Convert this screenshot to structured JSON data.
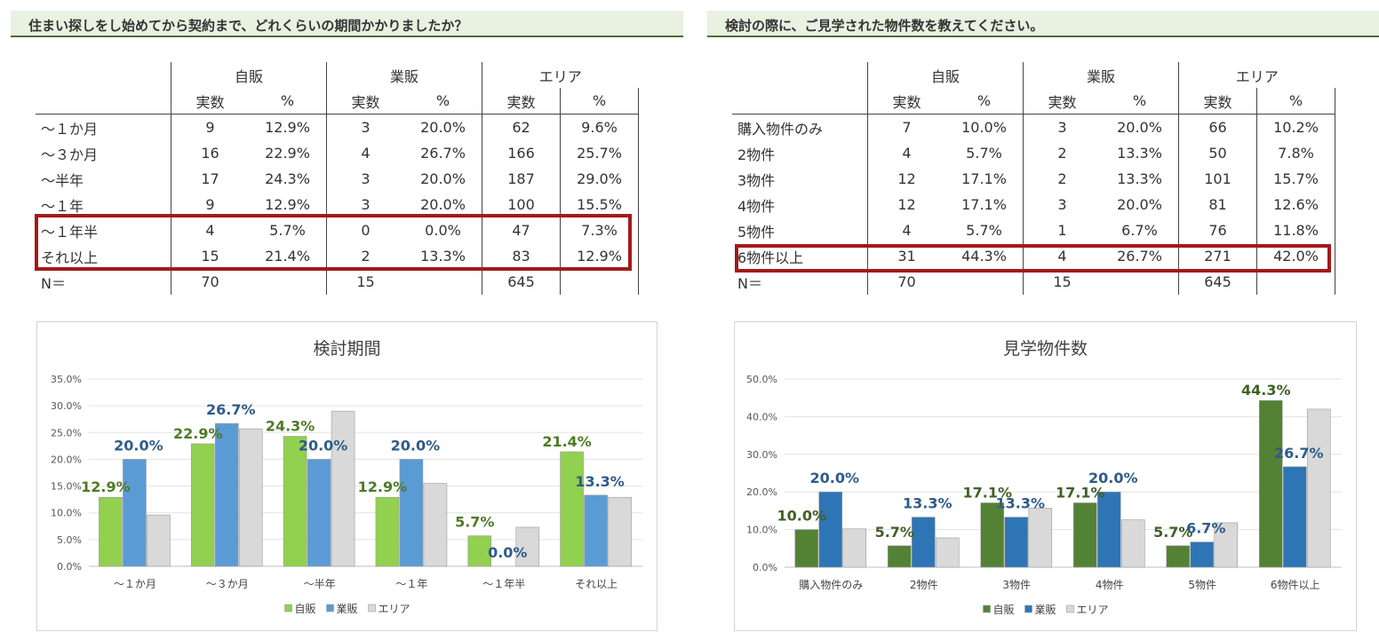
{
  "left": {
    "question": "住まい探しをし始めてから契約まで、どれくらいの期間かかりましたか？",
    "table": {
      "groups": [
        "自販",
        "業販",
        "エリア"
      ],
      "subheaders": [
        "実数",
        "%",
        "実数",
        "%",
        "実数",
        "%"
      ],
      "rows": [
        {
          "label": "～１か月",
          "cells": [
            "9",
            "12.9%",
            "3",
            "20.0%",
            "62",
            "9.6%"
          ]
        },
        {
          "label": "～３か月",
          "cells": [
            "16",
            "22.9%",
            "4",
            "26.7%",
            "166",
            "25.7%"
          ]
        },
        {
          "label": "～半年",
          "cells": [
            "17",
            "24.3%",
            "3",
            "20.0%",
            "187",
            "29.0%"
          ]
        },
        {
          "label": "～１年",
          "cells": [
            "9",
            "12.9%",
            "3",
            "20.0%",
            "100",
            "15.5%"
          ]
        },
        {
          "label": "～１年半",
          "cells": [
            "4",
            "5.7%",
            "0",
            "0.0%",
            "47",
            "7.3%"
          ]
        },
        {
          "label": "それ以上",
          "cells": [
            "15",
            "21.4%",
            "2",
            "13.3%",
            "83",
            "12.9%"
          ]
        }
      ],
      "total": {
        "label": "N＝",
        "cells": [
          "70",
          "",
          "15",
          "",
          "645",
          ""
        ]
      },
      "highlighted_rows": [
        4,
        5
      ]
    }
  },
  "right": {
    "question": "検討の際に、ご見学された物件数を教えてください。",
    "table": {
      "groups": [
        "自販",
        "業販",
        "エリア"
      ],
      "subheaders": [
        "実数",
        "%",
        "実数",
        "%",
        "実数",
        "%"
      ],
      "rows": [
        {
          "label": "購入物件のみ",
          "cells": [
            "7",
            "10.0%",
            "3",
            "20.0%",
            "66",
            "10.2%"
          ]
        },
        {
          "label": "2物件",
          "cells": [
            "4",
            "5.7%",
            "2",
            "13.3%",
            "50",
            "7.8%"
          ]
        },
        {
          "label": "3物件",
          "cells": [
            "12",
            "17.1%",
            "2",
            "13.3%",
            "101",
            "15.7%"
          ]
        },
        {
          "label": "4物件",
          "cells": [
            "12",
            "17.1%",
            "3",
            "20.0%",
            "81",
            "12.6%"
          ]
        },
        {
          "label": "5物件",
          "cells": [
            "4",
            "5.7%",
            "1",
            "6.7%",
            "76",
            "11.8%"
          ]
        },
        {
          "label": "6物件以上",
          "cells": [
            "31",
            "44.3%",
            "4",
            "26.7%",
            "271",
            "42.0%"
          ]
        }
      ],
      "total": {
        "label": "N＝",
        "cells": [
          "70",
          "",
          "15",
          "",
          "645",
          ""
        ]
      },
      "highlighted_rows": [
        5
      ]
    }
  },
  "chart_data": [
    {
      "type": "bar",
      "title": "検討期間",
      "categories": [
        "～１か月",
        "～３か月",
        "～半年",
        "～１年",
        "～１年半",
        "それ以上"
      ],
      "series": [
        {
          "name": "自販",
          "values": [
            12.9,
            22.9,
            24.3,
            12.9,
            5.7,
            21.4
          ],
          "color": "#92d050",
          "label_color": "#4f7a28"
        },
        {
          "name": "業販",
          "values": [
            20.0,
            26.7,
            20.0,
            20.0,
            0.0,
            13.3
          ],
          "color": "#5b9bd5",
          "label_color": "#2e5b8a"
        },
        {
          "name": "エリア",
          "values": [
            9.6,
            25.7,
            29.0,
            15.5,
            7.3,
            12.9
          ],
          "color": "#d9d9d9",
          "label_color": null
        }
      ],
      "ylim": [
        0,
        35
      ],
      "yticks": [
        "0.0%",
        "5.0%",
        "10.0%",
        "15.0%",
        "20.0%",
        "25.0%",
        "30.0%",
        "35.0%"
      ],
      "data_labels": [
        "自販",
        "業販"
      ],
      "grid": true,
      "legend": "bottom"
    },
    {
      "type": "bar",
      "title": "見学物件数",
      "categories": [
        "購入物件のみ",
        "2物件",
        "3物件",
        "4物件",
        "5物件",
        "6物件以上"
      ],
      "series": [
        {
          "name": "自販",
          "values": [
            10.0,
            5.7,
            17.1,
            17.1,
            5.7,
            44.3
          ],
          "color": "#548235",
          "label_color": "#3f6127"
        },
        {
          "name": "業販",
          "values": [
            20.0,
            13.3,
            13.3,
            20.0,
            6.7,
            26.7
          ],
          "color": "#2e75b6",
          "label_color": "#2e5b8a"
        },
        {
          "name": "エリア",
          "values": [
            10.2,
            7.8,
            15.7,
            12.6,
            11.8,
            42.0
          ],
          "color": "#d9d9d9",
          "label_color": null
        }
      ],
      "ylim": [
        0,
        50
      ],
      "yticks": [
        "0.0%",
        "10.0%",
        "20.0%",
        "30.0%",
        "40.0%",
        "50.0%"
      ],
      "data_labels": [
        "自販",
        "業販"
      ],
      "grid": true,
      "legend": "bottom"
    }
  ]
}
